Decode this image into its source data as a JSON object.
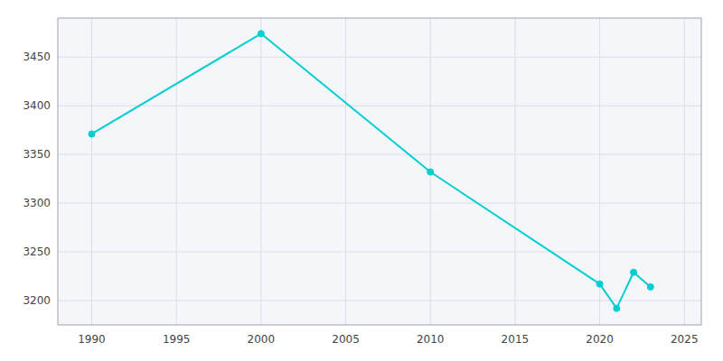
{
  "chart_data": {
    "type": "line",
    "x": [
      1990,
      2000,
      2010,
      2020,
      2021,
      2022,
      2023
    ],
    "values": [
      3371,
      3474,
      3332,
      3217,
      3192,
      3229,
      3214
    ],
    "color": "#00CED1",
    "marker": "circle",
    "xlim": [
      1988,
      2026
    ],
    "ylim": [
      3175,
      3490
    ],
    "xticks": [
      1990,
      1995,
      2000,
      2005,
      2010,
      2015,
      2020,
      2025
    ],
    "yticks": [
      3200,
      3250,
      3300,
      3350,
      3400,
      3450
    ],
    "grid": true
  }
}
